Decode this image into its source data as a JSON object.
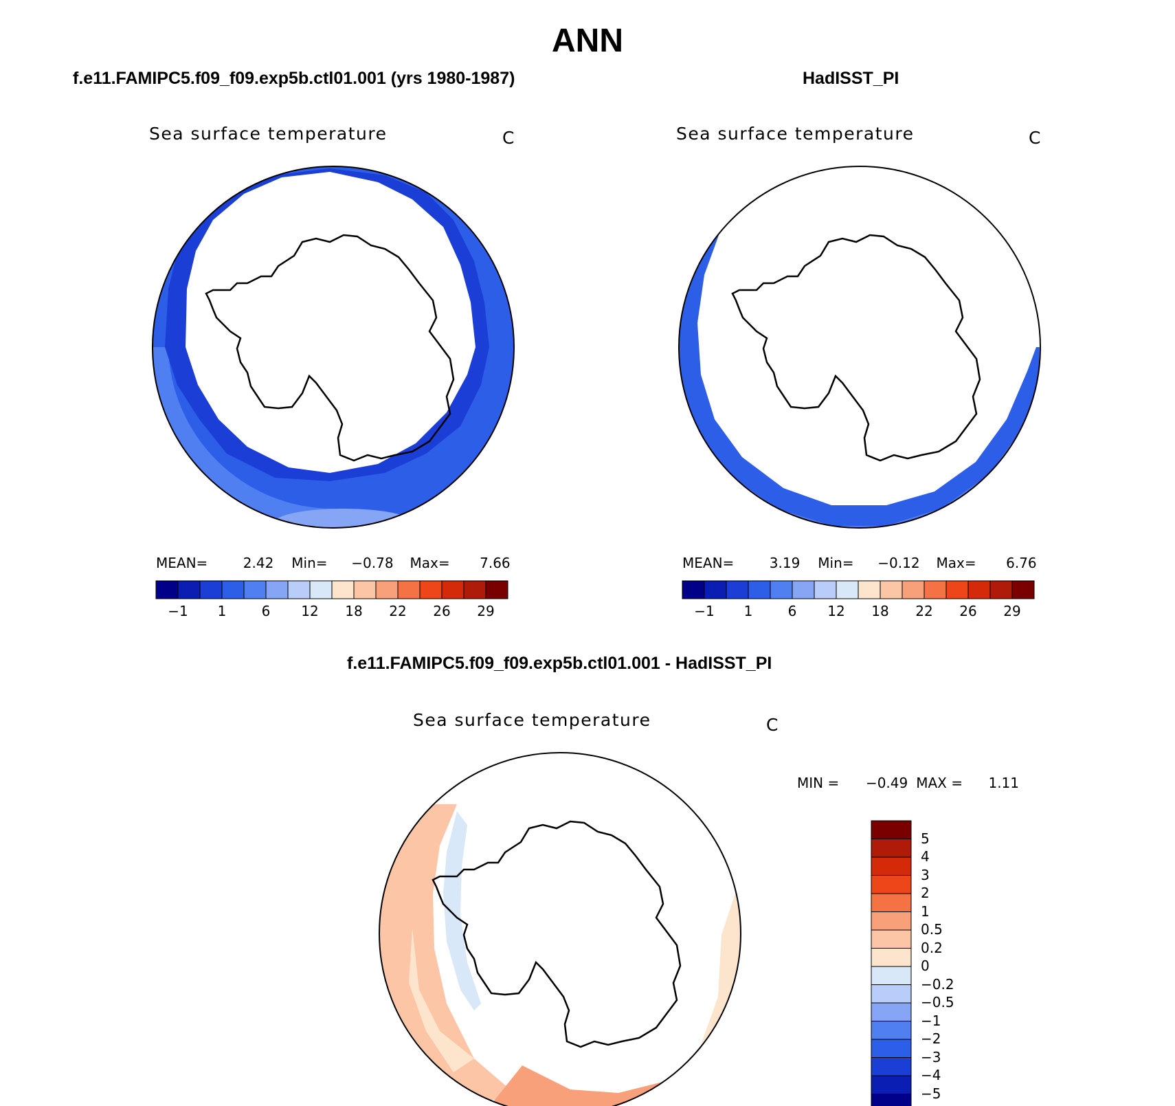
{
  "season": "ANN",
  "panels": {
    "model": {
      "case": "f.e11.FAMIPC5.f09_f09.exp5b.ctl01.001 (yrs 1980-1987)",
      "variable": "Sea surface temperature",
      "units": "C",
      "stats": {
        "mean_label": "MEAN=",
        "mean": "2.42",
        "min_label": "Min=",
        "min": "−0.78",
        "max_label": "Max=",
        "max": "7.66"
      }
    },
    "obs": {
      "case": "HadISST_PI",
      "variable": "Sea surface temperature",
      "units": "C",
      "stats": {
        "mean_label": "MEAN=",
        "mean": "3.19",
        "min_label": "Min=",
        "min": "−0.12",
        "max_label": "Max=",
        "max": "6.76"
      }
    },
    "diff": {
      "case": "f.e11.FAMIPC5.f09_f09.exp5b.ctl01.001 - HadISST_PI",
      "variable": "Sea surface temperature",
      "units": "C",
      "stats": {
        "min_label": "MIN =",
        "min": "−0.49",
        "max_label": "MAX =",
        "max": "1.11"
      }
    }
  },
  "colorbar_abs": {
    "colors": [
      "#000088",
      "#0a1eb4",
      "#1a3ed6",
      "#2d5ee8",
      "#4f7ff0",
      "#86a6f5",
      "#b8cdfa",
      "#d8e8f8",
      "#fde4cc",
      "#fcc6a6",
      "#f8a07a",
      "#f57244",
      "#ee4618",
      "#d42a0a",
      "#b01a08",
      "#7a0000"
    ],
    "ticks": [
      "−1",
      "1",
      "6",
      "12",
      "18",
      "22",
      "26",
      "29"
    ]
  },
  "colorbar_diff": {
    "colors": [
      "#000088",
      "#0a1eb4",
      "#1a3ed6",
      "#2d5ee8",
      "#4f7ff0",
      "#86a6f5",
      "#b8cdfa",
      "#d8e8f8",
      "#fde4cc",
      "#fcc6a6",
      "#f8a07a",
      "#f57244",
      "#ee4618",
      "#d42a0a",
      "#b01a08",
      "#7a0000"
    ],
    "ticks": [
      "5",
      "4",
      "3",
      "2",
      "1",
      "0.5",
      "0.2",
      "0",
      "−0.2",
      "−0.5",
      "−1",
      "−2",
      "−3",
      "−4",
      "−5"
    ]
  },
  "map_colors": {
    "model_outer": "#2d5ee8",
    "model_mid": "#4f7ff0",
    "model_edge": "#1a3ed6",
    "obs_outer": "#4f7ff0",
    "obs_edge": "#2d5ee8",
    "diff_warm": "#fcc6a6",
    "diff_light": "#fde4cc",
    "diff_warmer": "#f8a07a",
    "diff_cool": "#d8e8f8"
  }
}
